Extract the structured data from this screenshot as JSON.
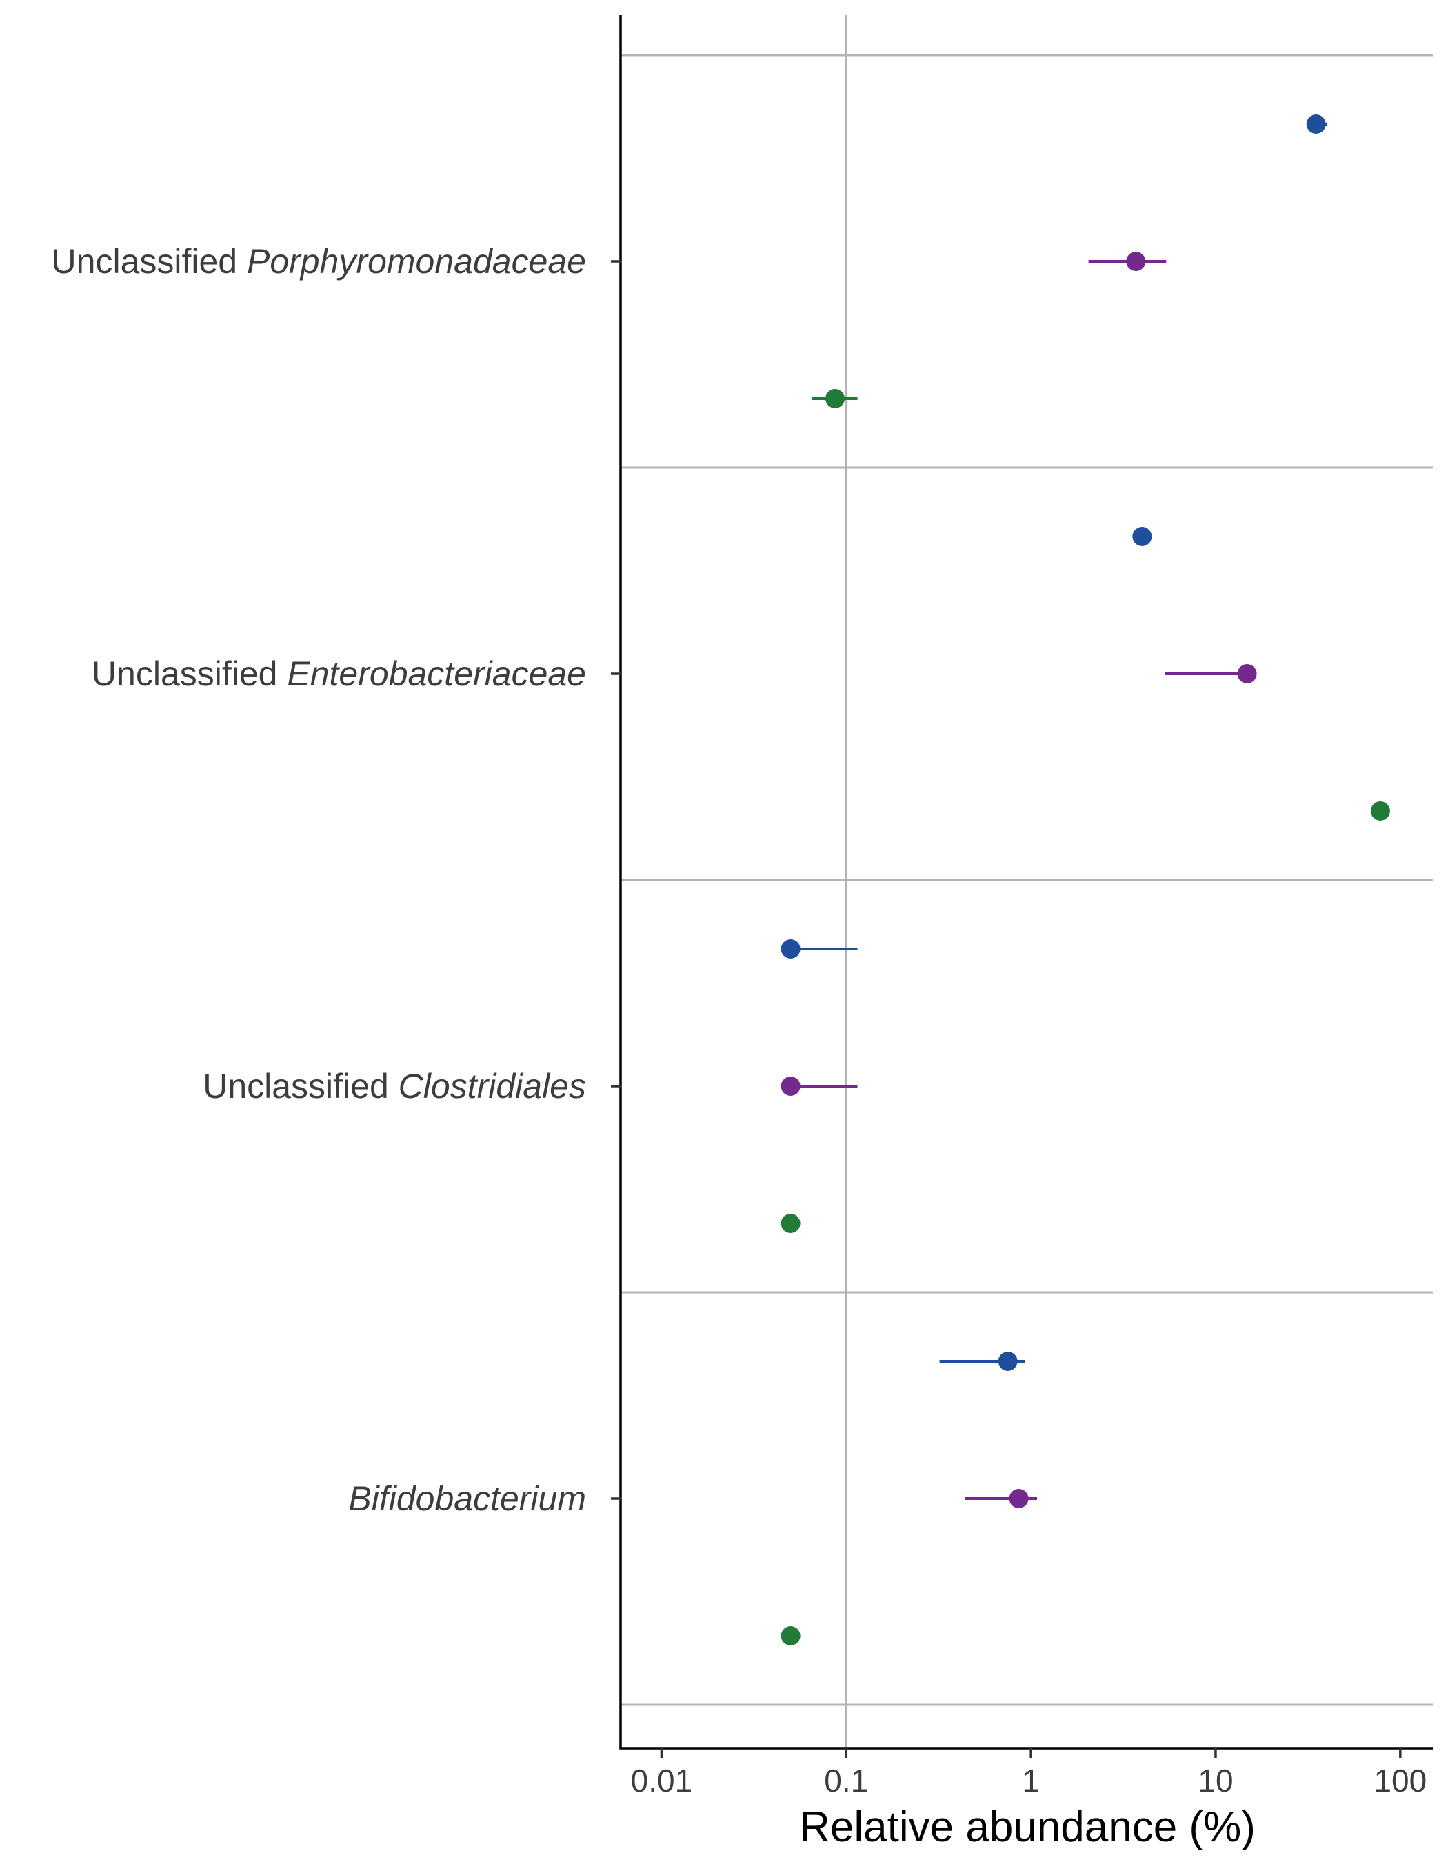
{
  "chart_data": {
    "type": "scatter",
    "orientation": "horizontal",
    "xlabel": "Relative abundance (%)",
    "ylabel": "",
    "xscale": "log",
    "xlim": [
      0.006,
      150
    ],
    "xticks": [
      0.01,
      0.1,
      1,
      10,
      100
    ],
    "xtick_labels": [
      "0.01",
      "0.1",
      "1",
      "10",
      "100"
    ],
    "grid": {
      "vertical_major": [
        0.1
      ],
      "horizontal_separators": true
    },
    "legend": "none",
    "categories": [
      {
        "prefix": "Unclassified ",
        "taxon": "Porphyromonadaceae"
      },
      {
        "prefix": "Unclassified ",
        "taxon": "Enterobacteriaceae"
      },
      {
        "prefix": "Unclassified ",
        "taxon": "Clostridiales"
      },
      {
        "prefix": "",
        "taxon": "Bifidobacterium"
      }
    ],
    "series": [
      {
        "color": "#1f4e9c",
        "points": [
          {
            "value": 35,
            "low": 33,
            "high": 40
          },
          {
            "value": 4.0,
            "low": 4.0,
            "high": 4.0
          },
          {
            "value": 0.05,
            "low": 0.05,
            "high": 0.115
          },
          {
            "value": 0.75,
            "low": 0.32,
            "high": 0.93
          }
        ]
      },
      {
        "color": "#74298f",
        "points": [
          {
            "value": 3.7,
            "low": 2.05,
            "high": 5.4
          },
          {
            "value": 14.8,
            "low": 5.3,
            "high": 14.8
          },
          {
            "value": 0.05,
            "low": 0.05,
            "high": 0.115
          },
          {
            "value": 0.86,
            "low": 0.44,
            "high": 1.08
          }
        ]
      },
      {
        "color": "#217a35",
        "points": [
          {
            "value": 0.087,
            "low": 0.065,
            "high": 0.115
          },
          {
            "value": 78,
            "low": 78,
            "high": 78
          },
          {
            "value": 0.05,
            "low": 0.05,
            "high": 0.05
          },
          {
            "value": 0.05,
            "low": 0.05,
            "high": 0.05
          }
        ]
      }
    ]
  }
}
